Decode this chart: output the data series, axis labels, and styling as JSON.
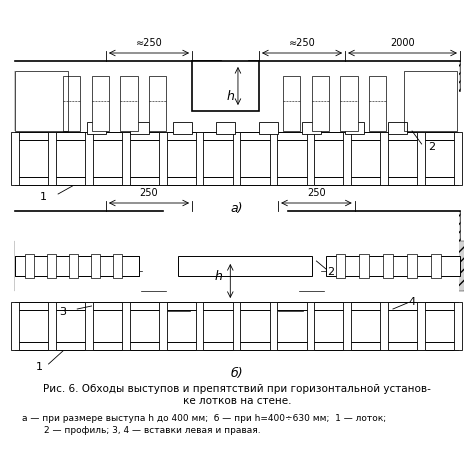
{
  "title": "Рис. 6. Обходы выступов и препятствий при горизонтальной установ-\nке лотков на стене.",
  "caption_line2": "а — при размере выступа h до 400 мм;  б — при h=400÷630 мм;  1 — лоток;",
  "caption_line3": "2 — профиль; 3, 4 — вставки левая и правая.",
  "label_a": "а)",
  "label_b": "б)",
  "bg_color": "#ffffff",
  "line_color": "#000000",
  "hatch_color": "#000000",
  "dim_250_top": "≈250",
  "dim_250_right": "≈250",
  "dim_2000": "2000",
  "dim_250_b_left": "250",
  "dim_250_b_right": "250",
  "label_h_a": "h",
  "label_h_b": "h",
  "label_1_a": "1",
  "label_2_a": "2",
  "label_1_b": "1",
  "label_2_b": "2",
  "label_3_b": "3",
  "label_4_b": "4"
}
